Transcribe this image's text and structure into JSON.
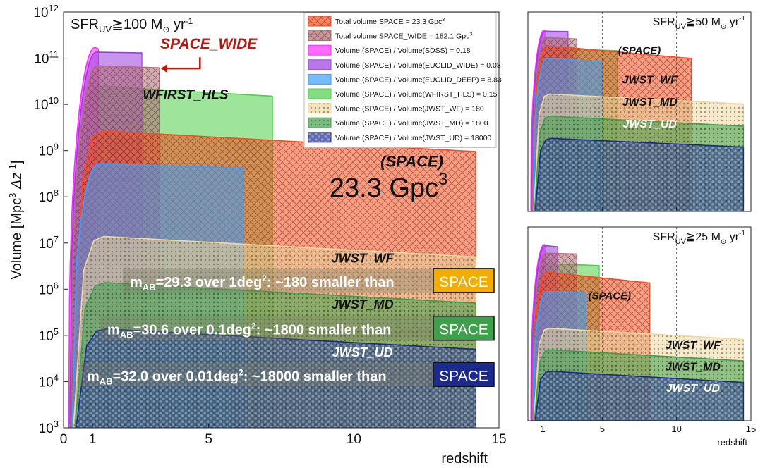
{
  "colors": {
    "space": "#ff4a1c",
    "space_wide": "#b06c78",
    "sdss": "#ff2cff",
    "euclid_wide": "#9a3ee0",
    "euclid_deep": "#3c9cff",
    "wfirst": "#4ed048",
    "jwst_wf": "#eed9a0",
    "jwst_md": "#3da04a",
    "jwst_ud": "#1c2a8e",
    "space_wide_arrow": "#b01a10",
    "callout_space": "#f3ac00"
  },
  "chart_data": [
    {
      "id": "main",
      "type": "area",
      "ylabel_text": "Volume [Mpc",
      "ylabel_sup": "3",
      "ylabel_tail": " Δz",
      "ylabel_sup2": "-1",
      "ylabel_end": "]",
      "xlabel": "redshift",
      "scale_y": "log",
      "xlim": [
        0,
        15
      ],
      "ylim": [
        1000,
        1000000000000
      ],
      "x_ticks": [
        0,
        1,
        5,
        10,
        15
      ],
      "x_tick_labels": [
        "0",
        "1",
        "5",
        "10",
        "15"
      ],
      "y_ticks": [
        1000,
        10000,
        100000,
        1000000,
        10000000,
        100000000,
        1000000000,
        10000000000,
        100000000000,
        1000000000000
      ],
      "y_tick_base": [
        "10",
        "10",
        "10",
        "10",
        "10",
        "10",
        "10",
        "10",
        "10",
        "10"
      ],
      "y_tick_exp": [
        "3",
        "4",
        "5",
        "6",
        "7",
        "8",
        "9",
        "10",
        "11",
        "12"
      ],
      "threshold": {
        "prefix": "SFR",
        "sub": "UV",
        "rel": "≧100 M",
        "sun": "⊙",
        "unit": " yr",
        "exp": "-1"
      },
      "series": [
        {
          "name": "WFIRST_HLS",
          "key": "wfirst",
          "zmin": 0.25,
          "zmax": 7.2,
          "peak": 25000000000,
          "z_end_value": 15000000000,
          "label": "WFIRST_HLS"
        },
        {
          "name": "SDSS",
          "key": "sdss",
          "zmin": 0.18,
          "zmax": 1.2,
          "peak": 170000000000,
          "z_end_value": 160000000000
        },
        {
          "name": "EUCLID_WIDE",
          "key": "euclid_wide",
          "zmin": 0.22,
          "zmax": 2.7,
          "peak": 135000000000,
          "z_end_value": 130000000000
        },
        {
          "name": "SPACE_WIDE",
          "key": "space_wide",
          "zmin": 0.25,
          "zmax": 3.3,
          "peak": 68000000000,
          "z_end_value": 62000000000,
          "label": "SPACE_WIDE"
        },
        {
          "name": "SPACE",
          "key": "space",
          "zmin": 0.3,
          "zmax": 14.2,
          "peak": 2700000000,
          "z_end_value": 950000000,
          "label": "(SPACE)",
          "big_label": "23.3 Gpc",
          "big_label_sup": "3"
        },
        {
          "name": "EUCLID_DEEP",
          "key": "euclid_deep",
          "zmin": 0.3,
          "zmax": 6.2,
          "peak": 520000000,
          "z_end_value": 420000000
        },
        {
          "name": "JWST_WF",
          "key": "jwst_wf",
          "zmin": 0.35,
          "zmax": 14.2,
          "peak": 14000000,
          "z_end_value": 5000000,
          "label": "JWST_WF"
        },
        {
          "name": "JWST_MD",
          "key": "jwst_md",
          "zmin": 0.4,
          "zmax": 14.2,
          "peak": 1400000,
          "z_end_value": 500000,
          "label": "JWST_MD"
        },
        {
          "name": "JWST_UD",
          "key": "jwst_ud",
          "zmin": 0.45,
          "zmax": 14.2,
          "peak": 140000,
          "z_end_value": 50000,
          "label": "JWST_UD"
        }
      ],
      "legend": [
        {
          "key": "space",
          "text": "Total volume SPACE = 23.3 Gpc",
          "sup": "3",
          "pattern": "cross"
        },
        {
          "key": "space_wide",
          "text": "Total volume SPACE_WIDE = 182.1 Gpc",
          "sup": "3",
          "pattern": "cross"
        },
        {
          "key": "sdss",
          "text": "Volume (SPACE)  / Volume(SDSS) = 0.18",
          "sup": "",
          "pattern": "solid"
        },
        {
          "key": "euclid_wide",
          "text": "Volume (SPACE)  / Volume(EUCLID_WIDE) = 0.08",
          "sup": "",
          "pattern": "solid"
        },
        {
          "key": "euclid_deep",
          "text": "Volume (SPACE)  / Volume(EUCLID_DEEP) = 8.83",
          "sup": "",
          "pattern": "solid"
        },
        {
          "key": "wfirst",
          "text": "Volume (SPACE)  / Volume(WFIRST_HLS) = 0.15",
          "sup": "",
          "pattern": "solid"
        },
        {
          "key": "jwst_wf",
          "text": "Volume (SPACE)  / Volume(JWST_WF) = 180",
          "sup": "",
          "pattern": "dots"
        },
        {
          "key": "jwst_md",
          "text": "Volume (SPACE)  / Volume(JWST_MD) = 1800",
          "sup": "",
          "pattern": "dots"
        },
        {
          "key": "jwst_ud",
          "text": "Volume (SPACE)  / Volume(JWST_UD) = 18000",
          "sup": "",
          "pattern": "hex"
        }
      ],
      "callouts": [
        {
          "m": "m",
          "sub": "AB",
          "text": "=29.3 over 1deg",
          "sup": "2",
          "tail": ": ~180 smaller than ",
          "box": "SPACE",
          "key": "callout_space"
        },
        {
          "m": "m",
          "sub": "AB",
          "text": "=30.6 over 0.1deg",
          "sup": "2",
          "tail": ": ~1800 smaller than ",
          "box": "SPACE",
          "key": "jwst_md"
        },
        {
          "m": "m",
          "sub": "AB",
          "text": "=32.0 over 0.01deg",
          "sup": "2",
          "tail": ": ~18000 smaller than ",
          "box": "SPACE",
          "key": "jwst_ud"
        }
      ]
    },
    {
      "id": "inset50",
      "type": "area",
      "xlabel": "",
      "scale_y": "log",
      "xlim": [
        0,
        15
      ],
      "ylim": [
        1000,
        1000000000000
      ],
      "x_ticks": [
        1,
        5,
        10,
        15
      ],
      "x_tick_labels": [],
      "dashed_x": [
        5,
        10
      ],
      "threshold": {
        "prefix": "SFR",
        "sub": "UV",
        "rel": "≧50 M",
        "sun": "⊙",
        "unit": " yr",
        "exp": "-1"
      },
      "series": [
        {
          "name": "WFIRST_HLS",
          "key": "wfirst",
          "zmin": 0.3,
          "zmax": 6.0,
          "peak": 22000000000,
          "z_end_value": 18000000000
        },
        {
          "name": "SDSS",
          "key": "sdss",
          "zmin": 0.2,
          "zmax": 1.2,
          "peak": 150000000000,
          "z_end_value": 140000000000
        },
        {
          "name": "EUCLID_WIDE",
          "key": "euclid_wide",
          "zmin": 0.25,
          "zmax": 2.7,
          "peak": 135000000000,
          "z_end_value": 130000000000
        },
        {
          "name": "SPACE_WIDE",
          "key": "space_wide",
          "zmin": 0.3,
          "zmax": 3.3,
          "peak": 70000000000,
          "z_end_value": 60000000000
        },
        {
          "name": "SPACE",
          "key": "space",
          "zmin": 0.35,
          "zmax": 11.0,
          "peak": 30000000000,
          "z_end_value": 8000000000,
          "label": "(SPACE)"
        },
        {
          "name": "EUCLID_DEEP",
          "key": "euclid_deep",
          "zmin": 0.35,
          "zmax": 5.0,
          "peak": 8000000000,
          "z_end_value": 6000000000
        },
        {
          "name": "JWST_WF",
          "key": "jwst_wf",
          "zmin": 0.4,
          "zmax": 14.5,
          "peak": 200000000,
          "z_end_value": 70000000,
          "label": "JWST_WF"
        },
        {
          "name": "JWST_MD",
          "key": "jwst_md",
          "zmin": 0.45,
          "zmax": 14.5,
          "peak": 20000000,
          "z_end_value": 7000000,
          "label": "JWST_MD"
        },
        {
          "name": "JWST_UD",
          "key": "jwst_ud",
          "zmin": 0.5,
          "zmax": 14.5,
          "peak": 2000000,
          "z_end_value": 800000,
          "label": "JWST_UD"
        }
      ]
    },
    {
      "id": "inset25",
      "type": "area",
      "xlabel": "redshift",
      "scale_y": "log",
      "xlim": [
        0,
        15
      ],
      "ylim": [
        1000,
        1000000000000
      ],
      "x_ticks": [
        1,
        5,
        10,
        15
      ],
      "x_tick_labels": [
        "1",
        "5",
        "10",
        "15"
      ],
      "dashed_x": [
        5,
        10
      ],
      "threshold": {
        "prefix": "SFR",
        "sub": "UV",
        "rel": "≧25 M",
        "sun": "⊙",
        "unit": " yr",
        "exp": "-1"
      },
      "series": [
        {
          "name": "WFIRST_HLS",
          "key": "wfirst",
          "zmin": 0.3,
          "zmax": 4.8,
          "peak": 20000000000,
          "z_end_value": 16000000000
        },
        {
          "name": "SDSS",
          "key": "sdss",
          "zmin": 0.2,
          "zmax": 1.2,
          "peak": 150000000000,
          "z_end_value": 140000000000
        },
        {
          "name": "EUCLID_WIDE",
          "key": "euclid_wide",
          "zmin": 0.25,
          "zmax": 2.0,
          "peak": 135000000000,
          "z_end_value": 120000000000
        },
        {
          "name": "SPACE_WIDE",
          "key": "space_wide",
          "zmin": 0.3,
          "zmax": 3.3,
          "peak": 60000000000,
          "z_end_value": 55000000000
        },
        {
          "name": "SPACE",
          "key": "space",
          "zmin": 0.35,
          "zmax": 8.2,
          "peak": 8000000000,
          "z_end_value": 2500000000,
          "label": "(SPACE)"
        },
        {
          "name": "EUCLID_DEEP",
          "key": "euclid_deep",
          "zmin": 0.35,
          "zmax": 3.9,
          "peak": 1000000000,
          "z_end_value": 900000000
        },
        {
          "name": "JWST_WF",
          "key": "jwst_wf",
          "zmin": 0.4,
          "zmax": 14.5,
          "peak": 20000000,
          "z_end_value": 6000000,
          "label": "JWST_WF"
        },
        {
          "name": "JWST_MD",
          "key": "jwst_md",
          "zmin": 0.45,
          "zmax": 14.5,
          "peak": 2000000,
          "z_end_value": 600000,
          "label": "JWST_MD"
        },
        {
          "name": "JWST_UD",
          "key": "jwst_ud",
          "zmin": 0.5,
          "zmax": 14.5,
          "peak": 200000,
          "z_end_value": 60000,
          "label": "JWST_UD"
        }
      ]
    }
  ]
}
